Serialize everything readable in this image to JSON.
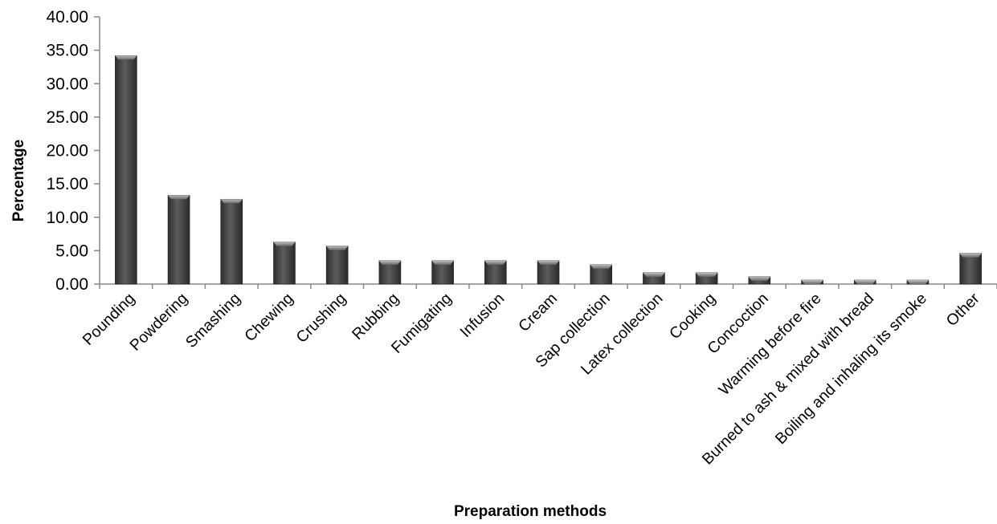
{
  "chart_data": {
    "type": "bar",
    "title": "",
    "xlabel": "Preparation methods",
    "ylabel": "Percentage",
    "ylim": [
      0,
      40
    ],
    "yticks": [
      "0.00",
      "5.00",
      "10.00",
      "15.00",
      "20.00",
      "25.00",
      "30.00",
      "35.00",
      "40.00"
    ],
    "categories": [
      "Pounding",
      "Powdering",
      "Smashing",
      "Chewing",
      "Crushing",
      "Rubbing",
      "Fumigating",
      "Infusion",
      "Cream",
      "Sap collection",
      "Latex collection",
      "Cooking",
      "Concoction",
      "Warming before fire",
      "Burned to ash & mixed with bread",
      "Boiling and inhaling its smoke",
      "Other"
    ],
    "values": [
      34.2,
      13.3,
      12.7,
      6.3,
      5.7,
      3.5,
      3.5,
      3.5,
      3.5,
      2.9,
      1.7,
      1.7,
      1.1,
      0.6,
      0.6,
      0.6,
      4.6
    ],
    "grid": false,
    "legend": "none",
    "bar_color": "#4a4a4a"
  }
}
